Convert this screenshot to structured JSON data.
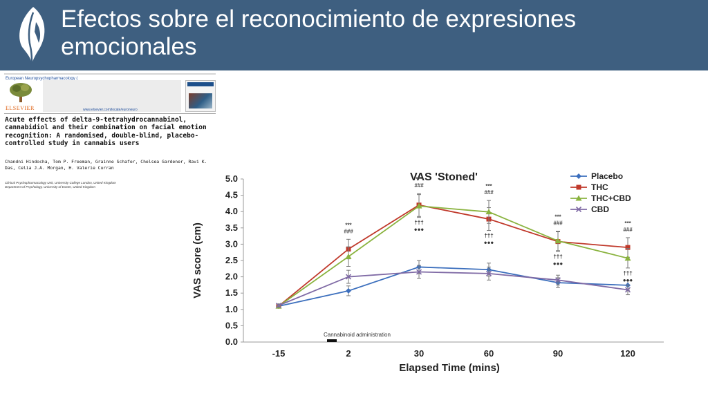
{
  "slide": {
    "title": "Efectos sobre el reconocimiento de expresiones emocionales",
    "logo_icon": "leaf-face-logo-icon",
    "header_color": "#3e5f80"
  },
  "paper": {
    "journal": "European Neuropsychopharmacology (",
    "publisher": "ELSEVIER",
    "website": "www.elsevier.com/locate/euroneuro",
    "title": "Acute effects of delta-9-tetrahydrocannabinol, cannabidiol and their combination on facial emotion recognition: A randomised, double-blind, placebo-controlled study in cannabis users",
    "authors": "Chandni Hindocha, Tom P. Freeman, Grainne Schafer, Chelsea Gardener, Ravi K. Das, Celia J.A. Morgan, H. Valerie Curran",
    "affiliations": [
      "Clinical Psychopharmacology Unit, University College London, United Kingdom",
      "Department of Psychology, University of Exeter, United Kingdom"
    ]
  },
  "chart_data": {
    "type": "line",
    "title": "VAS 'Stoned'",
    "xlabel": "Elapsed Time (mins)",
    "ylabel": "VAS score (cm)",
    "categories": [
      "-15",
      "2",
      "30",
      "60",
      "90",
      "120"
    ],
    "ylim": [
      0,
      5
    ],
    "yticks": [
      "0.0",
      "0.5",
      "1.0",
      "1.5",
      "2.0",
      "2.5",
      "3.0",
      "3.5",
      "4.0",
      "4.5",
      "5.0"
    ],
    "legend_position": "top-right",
    "annotation": "Cannabinoid administration",
    "series": [
      {
        "name": "Placebo",
        "color": "#3c6fbd",
        "marker": "diamond",
        "values": [
          1.1,
          1.57,
          2.3,
          2.22,
          1.82,
          1.74
        ],
        "errors": [
          0.05,
          0.15,
          0.2,
          0.2,
          0.15,
          0.15
        ]
      },
      {
        "name": "THC",
        "color": "#c0392b",
        "marker": "square",
        "values": [
          1.1,
          2.85,
          4.2,
          3.77,
          3.08,
          2.9
        ],
        "errors": [
          0.05,
          0.3,
          0.35,
          0.35,
          0.3,
          0.3
        ]
      },
      {
        "name": "THC+CBD",
        "color": "#8ab33f",
        "marker": "triangle",
        "values": [
          1.1,
          2.62,
          4.17,
          3.99,
          3.1,
          2.57
        ],
        "errors": [
          0.05,
          0.3,
          0.35,
          0.35,
          0.3,
          0.3
        ]
      },
      {
        "name": "CBD",
        "color": "#7f6aa5",
        "marker": "x",
        "values": [
          1.12,
          2.0,
          2.15,
          2.1,
          1.9,
          1.6
        ],
        "errors": [
          0.05,
          0.2,
          0.2,
          0.2,
          0.15,
          0.15
        ]
      }
    ],
    "significance": [
      {
        "x": "2",
        "marks": [
          "***",
          "###"
        ]
      },
      {
        "x": "30",
        "marks": [
          "***",
          "###",
          "†††",
          "●●●"
        ]
      },
      {
        "x": "60",
        "marks": [
          "***",
          "###",
          "†††",
          "●●●"
        ]
      },
      {
        "x": "90",
        "marks": [
          "***",
          "###",
          "†††",
          "●●●"
        ]
      },
      {
        "x": "120",
        "marks": [
          "***",
          "###",
          "†††",
          "●●●"
        ]
      }
    ]
  }
}
